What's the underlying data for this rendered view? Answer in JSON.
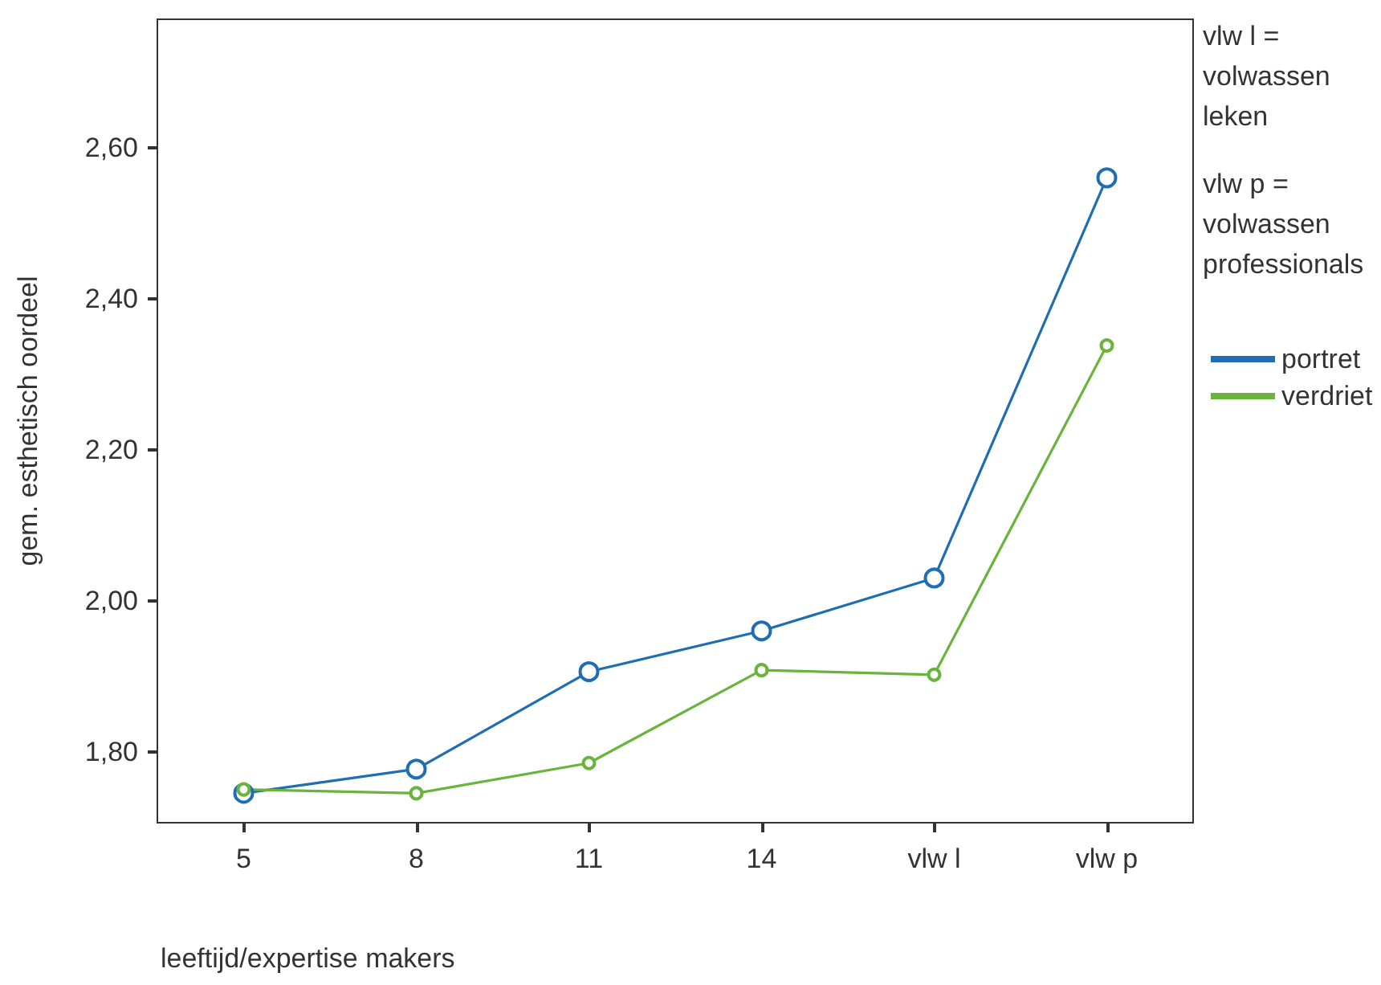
{
  "chart_data": {
    "type": "line",
    "xlabel": "leeftijd/expertise makers",
    "ylabel": "gem. esthetisch oordeel",
    "categories": [
      "5",
      "8",
      "11",
      "14",
      "vlw l",
      "vlw p"
    ],
    "series": [
      {
        "name": "portret",
        "color": "#1f6db3",
        "values": [
          1.745,
          1.777,
          1.906,
          1.96,
          2.03,
          2.56
        ]
      },
      {
        "name": "verdriet",
        "color": "#6ab43e",
        "values": [
          1.75,
          1.745,
          1.785,
          1.908,
          1.902,
          2.338
        ]
      }
    ],
    "ylim": [
      1.706,
      2.77
    ],
    "yticks": [
      {
        "value": 1.8,
        "label": "1,80"
      },
      {
        "value": 2.0,
        "label": "2,00"
      },
      {
        "value": 2.2,
        "label": "2,20"
      },
      {
        "value": 2.4,
        "label": "2,40"
      },
      {
        "value": 2.6,
        "label": "2,60"
      }
    ],
    "marker": "circle",
    "line_style": "solid",
    "legend": "right",
    "grid": false,
    "annotations": [
      "vlw l = volwassen leken",
      "vlw p = volwassen professionals"
    ]
  }
}
